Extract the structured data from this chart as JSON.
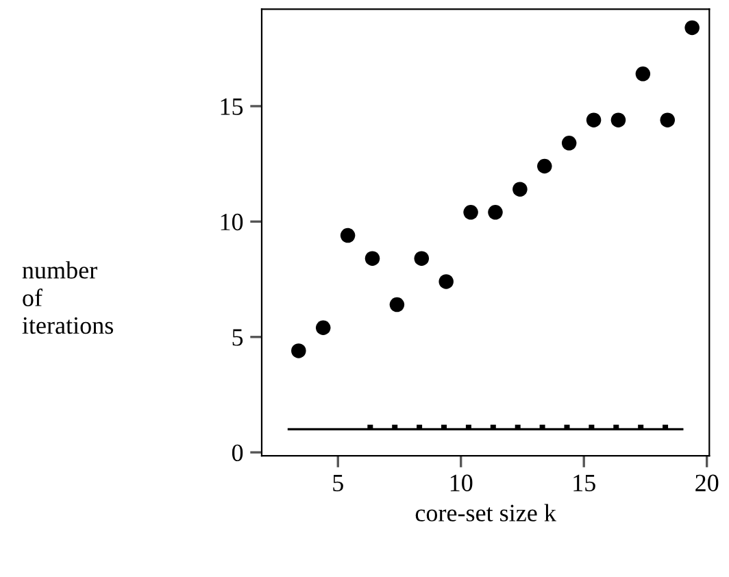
{
  "chart_data": {
    "type": "scatter",
    "xlabel": "core-set size k",
    "ylabel": "number\nof\niterations",
    "xlim": [
      1.9,
      20.1
    ],
    "ylim": [
      -0.15,
      19.2
    ],
    "xticks": [
      5,
      10,
      15,
      20
    ],
    "yticks": [
      0,
      5,
      10,
      15
    ],
    "grid": false,
    "legend": false,
    "series": [
      {
        "color": "#000000",
        "marker": "circle",
        "x": [
          3.4,
          4.4,
          5.4,
          6.4,
          7.4,
          8.4,
          9.4,
          10.4,
          11.4,
          12.4,
          13.4,
          14.4,
          15.4,
          16.4,
          17.4,
          18.4,
          19.4
        ],
        "values": [
          4.4,
          5.4,
          9.4,
          8.4,
          6.4,
          8.4,
          7.4,
          10.4,
          10.4,
          11.4,
          12.4,
          13.4,
          14.4,
          14.4,
          16.4,
          14.4,
          18.4
        ]
      },
      {
        "type": "line",
        "color": "#000000",
        "line_style": "solid",
        "marker": "none",
        "x": [
          3,
          19
        ],
        "values": [
          1,
          1
        ]
      },
      {
        "type": "line",
        "color": "#000000",
        "line_style": "dotted",
        "marker": "none",
        "x": [
          6.2,
          19.2
        ],
        "values": [
          1.1,
          1.1
        ]
      }
    ]
  }
}
